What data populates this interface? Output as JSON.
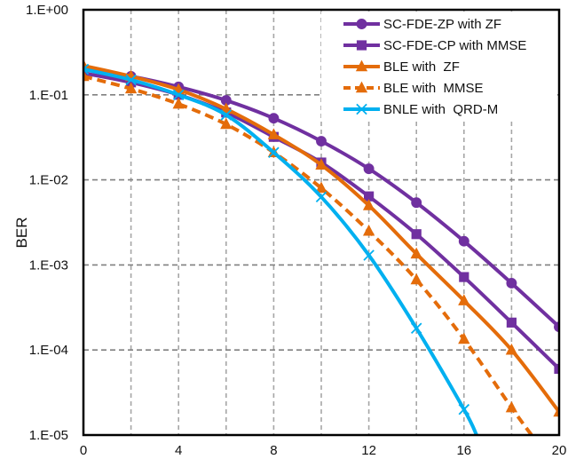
{
  "chart_data": {
    "type": "line",
    "title": "",
    "xlabel": "",
    "ylabel": "BER",
    "yscale": "log",
    "xlim": [
      0,
      20
    ],
    "ylim": [
      1e-05,
      1
    ],
    "x_ticks": [
      0,
      4,
      8,
      12,
      16,
      20
    ],
    "x_tick_labels": [
      "0",
      "4",
      "8",
      "12",
      "16",
      "20"
    ],
    "x_grid": [
      2,
      4,
      6,
      8,
      10,
      12,
      14,
      16,
      18
    ],
    "y_ticks": [
      1,
      0.1,
      0.01,
      0.001,
      0.0001,
      1e-05
    ],
    "y_tick_labels": [
      "1.E+00",
      "1.E-01",
      "1.E-02",
      "1.E-03",
      "1.E-04",
      "1.E-05"
    ],
    "grid": true,
    "legend_position": "top-right",
    "series": [
      {
        "name": "SC-FDE-ZP with ZF",
        "color": "#7030A0",
        "marker": "circle",
        "dash": false,
        "x": [
          0,
          2,
          4,
          6,
          8,
          10,
          12,
          14,
          16,
          18,
          20
        ],
        "y": [
          0.2,
          0.165,
          0.124,
          0.086,
          0.053,
          0.0285,
          0.0135,
          0.0054,
          0.0019,
          0.00061,
          0.000187
        ]
      },
      {
        "name": "SC-FDE-CP with MMSE",
        "color": "#7030A0",
        "marker": "square",
        "dash": false,
        "x": [
          0,
          2,
          4,
          6,
          8,
          10,
          12,
          14,
          16,
          18,
          20
        ],
        "y": [
          0.18,
          0.14,
          0.1,
          0.062,
          0.032,
          0.016,
          0.0064,
          0.0023,
          0.00072,
          0.00021,
          6e-05
        ]
      },
      {
        "name": "BLE with  ZF",
        "color": "#E46C0A",
        "marker": "triangle",
        "dash": false,
        "x": [
          0,
          2,
          4,
          6,
          8,
          10,
          12,
          14,
          16,
          18,
          20
        ],
        "y": [
          0.22,
          0.165,
          0.115,
          0.068,
          0.034,
          0.015,
          0.005,
          0.00135,
          0.00038,
          0.0001,
          1.87e-05
        ]
      },
      {
        "name": "BLE with  MMSE",
        "color": "#E46C0A",
        "marker": "triangle",
        "dash": true,
        "x": [
          0,
          2,
          4,
          6,
          8,
          10,
          12,
          14,
          16,
          18,
          18.84
        ],
        "y": [
          0.165,
          0.118,
          0.078,
          0.045,
          0.021,
          0.008,
          0.0025,
          0.00067,
          0.000134,
          2.1e-05,
          1e-05
        ]
      },
      {
        "name": "BNLE with  QRD-M",
        "color": "#00B0F0",
        "marker": "x",
        "dash": false,
        "x": [
          0,
          2,
          4,
          6,
          8,
          10,
          12,
          14,
          16,
          16.53
        ],
        "y": [
          0.2,
          0.15,
          0.1,
          0.058,
          0.021,
          0.0063,
          0.0013,
          0.00018,
          2e-05,
          1e-05
        ]
      }
    ]
  }
}
